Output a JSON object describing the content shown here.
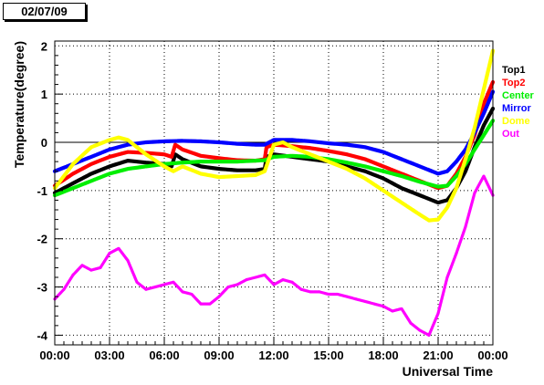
{
  "header": {
    "date": "02/07/09"
  },
  "chart_data": {
    "type": "scatter",
    "title": "",
    "xlabel": "Universal Time",
    "ylabel": "Temperature(degree)",
    "xlim": [
      0,
      24
    ],
    "ylim": [
      -4.2,
      2.1
    ],
    "x_ticks": [
      "00:00",
      "03:00",
      "06:00",
      "09:00",
      "12:00",
      "15:00",
      "18:00",
      "21:00",
      "00:00"
    ],
    "y_ticks": [
      -4,
      -3,
      -2,
      -1,
      0,
      1,
      2
    ],
    "grid": true,
    "zero_line": true,
    "legend_position": "right",
    "series": [
      {
        "name": "Top1",
        "color": "#000000",
        "x": [
          0,
          1,
          2,
          3,
          4,
          5,
          6,
          6.4,
          6.6,
          7,
          8,
          9,
          10,
          11,
          11.5,
          11.6,
          12,
          13,
          14,
          15,
          16,
          17,
          18,
          19,
          20,
          21,
          21.5,
          22,
          22.5,
          23,
          23.5,
          24
        ],
        "y": [
          -1.05,
          -0.85,
          -0.65,
          -0.5,
          -0.38,
          -0.42,
          -0.45,
          -0.5,
          -0.25,
          -0.35,
          -0.5,
          -0.55,
          -0.58,
          -0.58,
          -0.55,
          -0.3,
          -0.25,
          -0.3,
          -0.35,
          -0.4,
          -0.5,
          -0.6,
          -0.75,
          -0.95,
          -1.1,
          -1.25,
          -1.2,
          -0.95,
          -0.6,
          -0.1,
          0.35,
          0.7
        ]
      },
      {
        "name": "Top2",
        "color": "#ff0000",
        "x": [
          0,
          1,
          2,
          3,
          4,
          5,
          6,
          6.4,
          6.6,
          7,
          8,
          9,
          10,
          11,
          11.5,
          11.6,
          12,
          13,
          14,
          15,
          16,
          17,
          18,
          19,
          20,
          21,
          21.5,
          22,
          22.5,
          23,
          23.5,
          24
        ],
        "y": [
          -0.9,
          -0.65,
          -0.45,
          -0.3,
          -0.2,
          -0.22,
          -0.25,
          -0.3,
          -0.05,
          -0.15,
          -0.28,
          -0.33,
          -0.37,
          -0.38,
          -0.35,
          -0.1,
          -0.05,
          -0.08,
          -0.12,
          -0.18,
          -0.25,
          -0.35,
          -0.5,
          -0.65,
          -0.8,
          -0.95,
          -0.9,
          -0.65,
          -0.3,
          0.15,
          0.8,
          1.25
        ]
      },
      {
        "name": "Center",
        "color": "#00ee00",
        "x": [
          0,
          1,
          2,
          3,
          4,
          5,
          6,
          7,
          8,
          9,
          10,
          11,
          11.5,
          12,
          13,
          14,
          15,
          16,
          17,
          18,
          19,
          20,
          21,
          21.5,
          22,
          22.5,
          23,
          23.5,
          24
        ],
        "y": [
          -1.1,
          -0.95,
          -0.8,
          -0.65,
          -0.55,
          -0.5,
          -0.45,
          -0.42,
          -0.4,
          -0.4,
          -0.4,
          -0.38,
          -0.37,
          -0.3,
          -0.28,
          -0.3,
          -0.35,
          -0.42,
          -0.5,
          -0.6,
          -0.7,
          -0.82,
          -0.92,
          -0.9,
          -0.7,
          -0.45,
          -0.15,
          0.15,
          0.45
        ]
      },
      {
        "name": "Mirror",
        "color": "#0000ff",
        "x": [
          0,
          1,
          2,
          3,
          4,
          5,
          6,
          7,
          8,
          9,
          10,
          11,
          11.5,
          12,
          13,
          14,
          15,
          16,
          17,
          18,
          19,
          20,
          21,
          21.5,
          22,
          22.5,
          23,
          23.5,
          24
        ],
        "y": [
          -0.6,
          -0.45,
          -0.3,
          -0.15,
          -0.05,
          0.0,
          0.02,
          0.03,
          0.02,
          0.0,
          -0.03,
          -0.05,
          -0.05,
          0.05,
          0.05,
          0.02,
          -0.02,
          -0.05,
          -0.1,
          -0.2,
          -0.35,
          -0.5,
          -0.65,
          -0.6,
          -0.4,
          -0.15,
          0.2,
          0.6,
          1.05
        ]
      },
      {
        "name": "Dome",
        "color": "#ffff00",
        "x": [
          0,
          0.5,
          1,
          2,
          3,
          3.5,
          4,
          5,
          6,
          6.5,
          7,
          8,
          9,
          10,
          11,
          11.5,
          12,
          12.5,
          13,
          14,
          15,
          16,
          17,
          18,
          19,
          20,
          20.5,
          21,
          21.5,
          22,
          22.5,
          23,
          23.5,
          24
        ],
        "y": [
          -0.95,
          -0.7,
          -0.45,
          -0.1,
          0.05,
          0.1,
          0.05,
          -0.25,
          -0.5,
          -0.6,
          -0.5,
          -0.65,
          -0.72,
          -0.7,
          -0.68,
          -0.6,
          -0.05,
          0.0,
          -0.1,
          -0.25,
          -0.4,
          -0.55,
          -0.75,
          -1.0,
          -1.25,
          -1.5,
          -1.62,
          -1.6,
          -1.35,
          -0.95,
          -0.35,
          0.3,
          1.1,
          1.9
        ]
      },
      {
        "name": "Out",
        "color": "#ff00ff",
        "x": [
          0,
          0.5,
          1,
          1.5,
          2,
          2.5,
          3,
          3.5,
          4,
          4.5,
          5,
          5.5,
          6,
          6.5,
          7,
          7.5,
          8,
          8.5,
          9,
          9.5,
          10,
          10.5,
          11,
          11.5,
          12,
          12.5,
          13,
          13.5,
          14,
          14.5,
          15,
          15.5,
          16,
          16.5,
          17,
          17.5,
          18,
          18.5,
          19,
          19.5,
          20,
          20.5,
          21,
          21.5,
          22,
          22.5,
          23,
          23.5,
          24
        ],
        "y": [
          -3.25,
          -3.05,
          -2.75,
          -2.55,
          -2.65,
          -2.6,
          -2.3,
          -2.2,
          -2.45,
          -2.9,
          -3.05,
          -3.0,
          -2.95,
          -2.9,
          -3.1,
          -3.15,
          -3.35,
          -3.35,
          -3.2,
          -3.0,
          -2.95,
          -2.85,
          -2.8,
          -2.75,
          -2.95,
          -2.85,
          -2.9,
          -3.05,
          -3.1,
          -3.1,
          -3.15,
          -3.15,
          -3.2,
          -3.25,
          -3.3,
          -3.35,
          -3.4,
          -3.5,
          -3.45,
          -3.75,
          -3.9,
          -4.0,
          -3.55,
          -2.8,
          -2.3,
          -1.75,
          -1.05,
          -0.7,
          -1.1
        ]
      }
    ]
  }
}
